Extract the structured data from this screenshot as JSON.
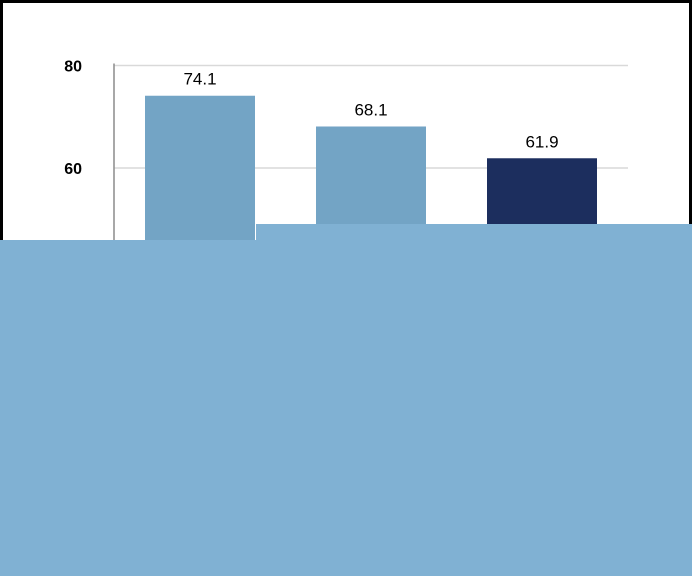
{
  "chart_data": {
    "type": "bar",
    "categories": [
      "",
      "",
      ""
    ],
    "values": [
      74.1,
      68.1,
      61.9
    ],
    "value_labels": [
      "74.1",
      "68.1",
      "61.9"
    ],
    "bar_colors": [
      "#73a4c5",
      "#73a4c5",
      "#1c2e5e"
    ],
    "y_ticks": [
      60,
      80
    ],
    "y_tick_labels": [
      "60",
      "80"
    ],
    "ylim_visible": [
      50,
      80
    ],
    "grid": true,
    "title": "",
    "xlabel": "",
    "ylabel": ""
  },
  "overlay": {
    "color": "#80b1d3"
  }
}
